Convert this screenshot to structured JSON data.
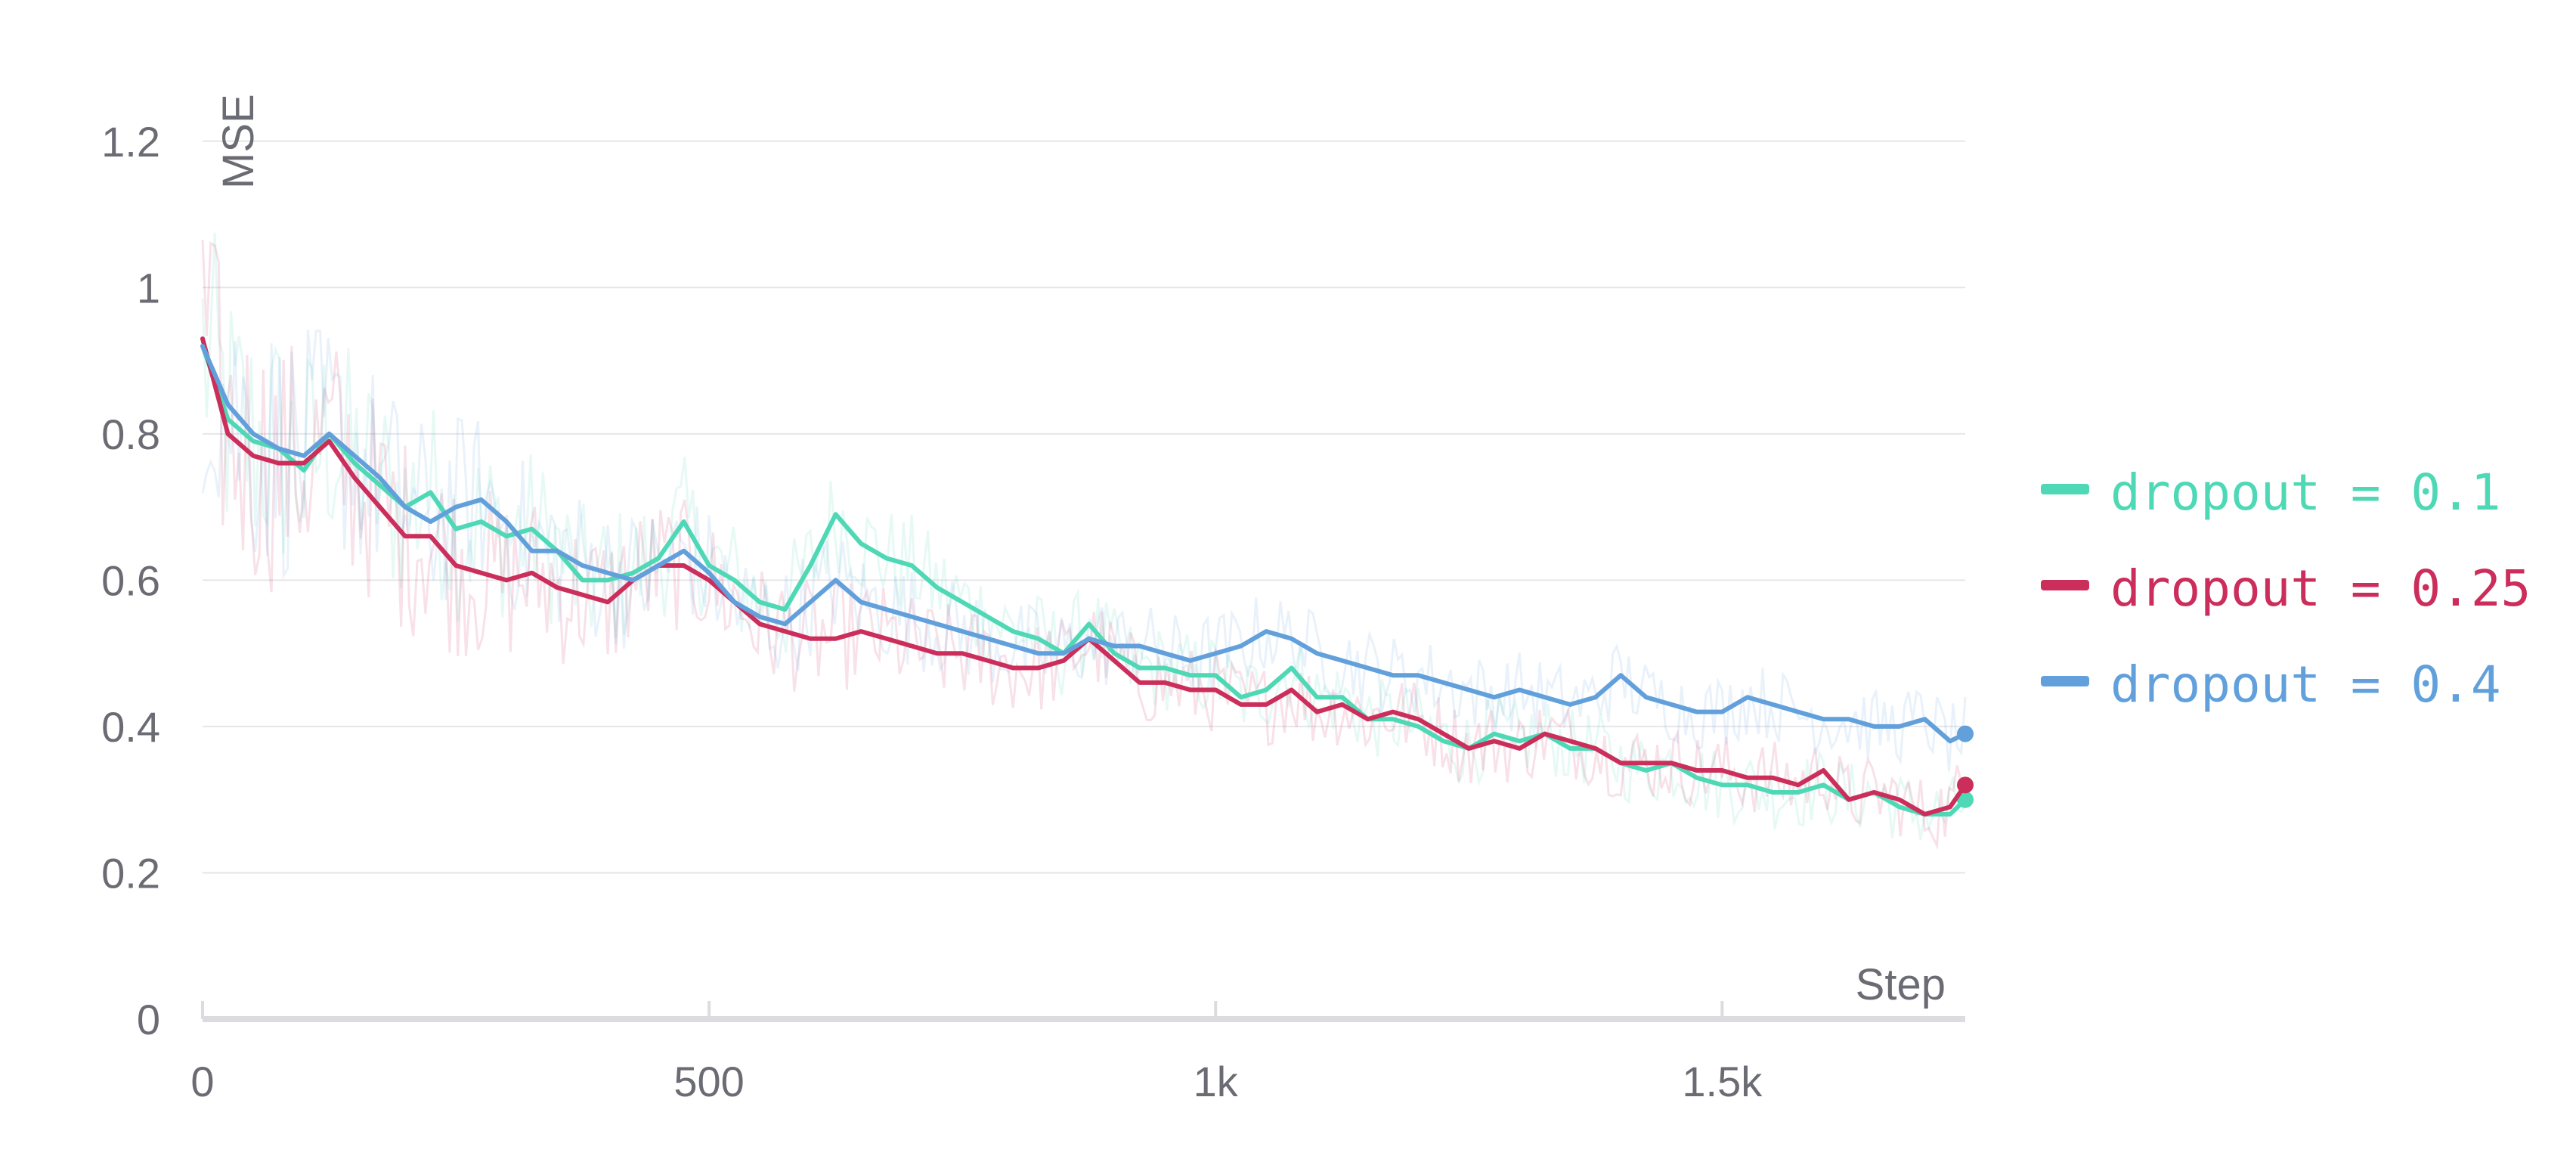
{
  "chart_data": {
    "type": "line",
    "xlabel": "Step",
    "ylabel": "MSE",
    "xlim": [
      0,
      1740
    ],
    "ylim": [
      0,
      1.3
    ],
    "x_ticks": [
      {
        "value": 0,
        "label": "0"
      },
      {
        "value": 500,
        "label": "500"
      },
      {
        "value": 1000,
        "label": "1k"
      },
      {
        "value": 1500,
        "label": "1.5k"
      }
    ],
    "y_ticks": [
      {
        "value": 0,
        "label": "0"
      },
      {
        "value": 0.2,
        "label": "0.2"
      },
      {
        "value": 0.4,
        "label": "0.4"
      },
      {
        "value": 0.6,
        "label": "0.6"
      },
      {
        "value": 0.8,
        "label": "0.8"
      },
      {
        "value": 1,
        "label": "1"
      },
      {
        "value": 1.2,
        "label": "1.2"
      }
    ],
    "grid": true,
    "legend_position": "right",
    "smoothed": true,
    "raw_band": "faint raw traces behind smoothed lines",
    "series": [
      {
        "name": "dropout = 0.1",
        "color": "#4fd8b5",
        "points": [
          [
            0,
            0.92
          ],
          [
            25,
            0.82
          ],
          [
            50,
            0.79
          ],
          [
            75,
            0.78
          ],
          [
            100,
            0.75
          ],
          [
            125,
            0.8
          ],
          [
            150,
            0.76
          ],
          [
            175,
            0.73
          ],
          [
            200,
            0.7
          ],
          [
            225,
            0.72
          ],
          [
            250,
            0.67
          ],
          [
            275,
            0.68
          ],
          [
            300,
            0.66
          ],
          [
            325,
            0.67
          ],
          [
            350,
            0.64
          ],
          [
            375,
            0.6
          ],
          [
            400,
            0.6
          ],
          [
            425,
            0.61
          ],
          [
            450,
            0.63
          ],
          [
            475,
            0.68
          ],
          [
            500,
            0.62
          ],
          [
            525,
            0.6
          ],
          [
            550,
            0.57
          ],
          [
            575,
            0.56
          ],
          [
            600,
            0.62
          ],
          [
            625,
            0.69
          ],
          [
            650,
            0.65
          ],
          [
            675,
            0.63
          ],
          [
            700,
            0.62
          ],
          [
            725,
            0.59
          ],
          [
            750,
            0.57
          ],
          [
            775,
            0.55
          ],
          [
            800,
            0.53
          ],
          [
            825,
            0.52
          ],
          [
            850,
            0.5
          ],
          [
            875,
            0.54
          ],
          [
            900,
            0.5
          ],
          [
            925,
            0.48
          ],
          [
            950,
            0.48
          ],
          [
            975,
            0.47
          ],
          [
            1000,
            0.47
          ],
          [
            1025,
            0.44
          ],
          [
            1050,
            0.45
          ],
          [
            1075,
            0.48
          ],
          [
            1100,
            0.44
          ],
          [
            1125,
            0.44
          ],
          [
            1150,
            0.41
          ],
          [
            1175,
            0.41
          ],
          [
            1200,
            0.4
          ],
          [
            1225,
            0.38
          ],
          [
            1250,
            0.37
          ],
          [
            1275,
            0.39
          ],
          [
            1300,
            0.38
          ],
          [
            1325,
            0.39
          ],
          [
            1350,
            0.37
          ],
          [
            1375,
            0.37
          ],
          [
            1400,
            0.35
          ],
          [
            1425,
            0.34
          ],
          [
            1450,
            0.35
          ],
          [
            1475,
            0.33
          ],
          [
            1500,
            0.32
          ],
          [
            1525,
            0.32
          ],
          [
            1550,
            0.31
          ],
          [
            1575,
            0.31
          ],
          [
            1600,
            0.32
          ],
          [
            1625,
            0.3
          ],
          [
            1650,
            0.31
          ],
          [
            1675,
            0.29
          ],
          [
            1700,
            0.28
          ],
          [
            1725,
            0.28
          ],
          [
            1740,
            0.3
          ]
        ]
      },
      {
        "name": "dropout = 0.25",
        "color": "#cc2e5b",
        "points": [
          [
            0,
            0.93
          ],
          [
            25,
            0.8
          ],
          [
            50,
            0.77
          ],
          [
            75,
            0.76
          ],
          [
            100,
            0.76
          ],
          [
            125,
            0.79
          ],
          [
            150,
            0.74
          ],
          [
            175,
            0.7
          ],
          [
            200,
            0.66
          ],
          [
            225,
            0.66
          ],
          [
            250,
            0.62
          ],
          [
            275,
            0.61
          ],
          [
            300,
            0.6
          ],
          [
            325,
            0.61
          ],
          [
            350,
            0.59
          ],
          [
            375,
            0.58
          ],
          [
            400,
            0.57
          ],
          [
            425,
            0.6
          ],
          [
            450,
            0.62
          ],
          [
            475,
            0.62
          ],
          [
            500,
            0.6
          ],
          [
            525,
            0.57
          ],
          [
            550,
            0.54
          ],
          [
            575,
            0.53
          ],
          [
            600,
            0.52
          ],
          [
            625,
            0.52
          ],
          [
            650,
            0.53
          ],
          [
            675,
            0.52
          ],
          [
            700,
            0.51
          ],
          [
            725,
            0.5
          ],
          [
            750,
            0.5
          ],
          [
            775,
            0.49
          ],
          [
            800,
            0.48
          ],
          [
            825,
            0.48
          ],
          [
            850,
            0.49
          ],
          [
            875,
            0.52
          ],
          [
            900,
            0.49
          ],
          [
            925,
            0.46
          ],
          [
            950,
            0.46
          ],
          [
            975,
            0.45
          ],
          [
            1000,
            0.45
          ],
          [
            1025,
            0.43
          ],
          [
            1050,
            0.43
          ],
          [
            1075,
            0.45
          ],
          [
            1100,
            0.42
          ],
          [
            1125,
            0.43
          ],
          [
            1150,
            0.41
          ],
          [
            1175,
            0.42
          ],
          [
            1200,
            0.41
          ],
          [
            1225,
            0.39
          ],
          [
            1250,
            0.37
          ],
          [
            1275,
            0.38
          ],
          [
            1300,
            0.37
          ],
          [
            1325,
            0.39
          ],
          [
            1350,
            0.38
          ],
          [
            1375,
            0.37
          ],
          [
            1400,
            0.35
          ],
          [
            1425,
            0.35
          ],
          [
            1450,
            0.35
          ],
          [
            1475,
            0.34
          ],
          [
            1500,
            0.34
          ],
          [
            1525,
            0.33
          ],
          [
            1550,
            0.33
          ],
          [
            1575,
            0.32
          ],
          [
            1600,
            0.34
          ],
          [
            1625,
            0.3
          ],
          [
            1650,
            0.31
          ],
          [
            1675,
            0.3
          ],
          [
            1700,
            0.28
          ],
          [
            1725,
            0.29
          ],
          [
            1740,
            0.32
          ]
        ]
      },
      {
        "name": "dropout = 0.4",
        "color": "#62a0dc",
        "points": [
          [
            0,
            0.92
          ],
          [
            25,
            0.84
          ],
          [
            50,
            0.8
          ],
          [
            75,
            0.78
          ],
          [
            100,
            0.77
          ],
          [
            125,
            0.8
          ],
          [
            150,
            0.77
          ],
          [
            175,
            0.74
          ],
          [
            200,
            0.7
          ],
          [
            225,
            0.68
          ],
          [
            250,
            0.7
          ],
          [
            275,
            0.71
          ],
          [
            300,
            0.68
          ],
          [
            325,
            0.64
          ],
          [
            350,
            0.64
          ],
          [
            375,
            0.62
          ],
          [
            400,
            0.61
          ],
          [
            425,
            0.6
          ],
          [
            450,
            0.62
          ],
          [
            475,
            0.64
          ],
          [
            500,
            0.61
          ],
          [
            525,
            0.57
          ],
          [
            550,
            0.55
          ],
          [
            575,
            0.54
          ],
          [
            600,
            0.57
          ],
          [
            625,
            0.6
          ],
          [
            650,
            0.57
          ],
          [
            675,
            0.56
          ],
          [
            700,
            0.55
          ],
          [
            725,
            0.54
          ],
          [
            750,
            0.53
          ],
          [
            775,
            0.52
          ],
          [
            800,
            0.51
          ],
          [
            825,
            0.5
          ],
          [
            850,
            0.5
          ],
          [
            875,
            0.52
          ],
          [
            900,
            0.51
          ],
          [
            925,
            0.51
          ],
          [
            950,
            0.5
          ],
          [
            975,
            0.49
          ],
          [
            1000,
            0.5
          ],
          [
            1025,
            0.51
          ],
          [
            1050,
            0.53
          ],
          [
            1075,
            0.52
          ],
          [
            1100,
            0.5
          ],
          [
            1125,
            0.49
          ],
          [
            1150,
            0.48
          ],
          [
            1175,
            0.47
          ],
          [
            1200,
            0.47
          ],
          [
            1225,
            0.46
          ],
          [
            1250,
            0.45
          ],
          [
            1275,
            0.44
          ],
          [
            1300,
            0.45
          ],
          [
            1325,
            0.44
          ],
          [
            1350,
            0.43
          ],
          [
            1375,
            0.44
          ],
          [
            1400,
            0.47
          ],
          [
            1425,
            0.44
          ],
          [
            1450,
            0.43
          ],
          [
            1475,
            0.42
          ],
          [
            1500,
            0.42
          ],
          [
            1525,
            0.44
          ],
          [
            1550,
            0.43
          ],
          [
            1575,
            0.42
          ],
          [
            1600,
            0.41
          ],
          [
            1625,
            0.41
          ],
          [
            1650,
            0.4
          ],
          [
            1675,
            0.4
          ],
          [
            1700,
            0.41
          ],
          [
            1725,
            0.38
          ],
          [
            1740,
            0.39
          ]
        ]
      }
    ]
  }
}
